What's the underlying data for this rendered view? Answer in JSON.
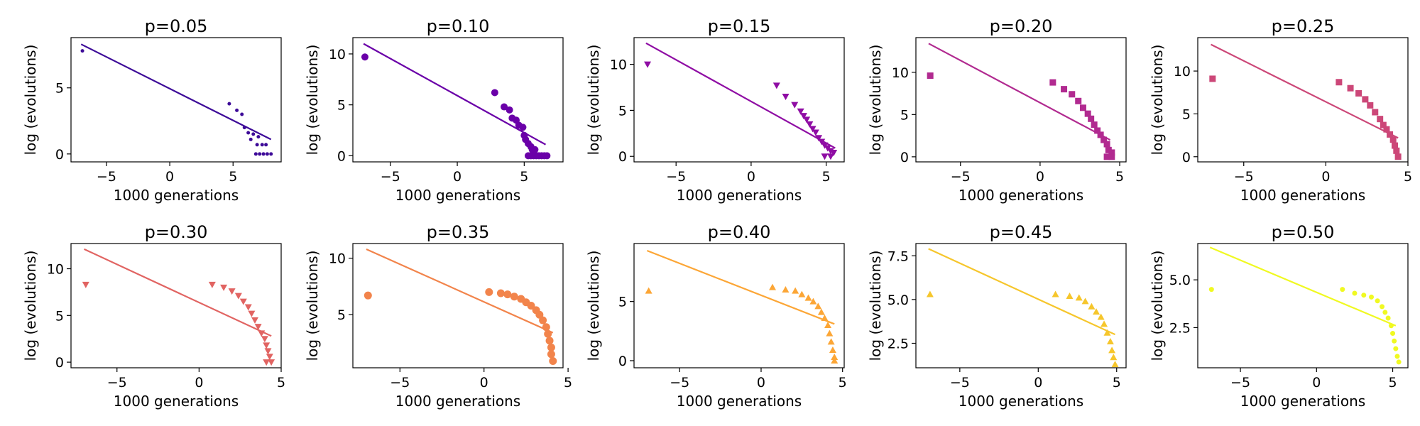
{
  "chart_data": [
    {
      "type": "scatter",
      "title": "p=0.05",
      "xlabel": "1000 generations",
      "ylabel": "log (evolutions)",
      "xlim": [
        -7.8,
        8.8
      ],
      "ylim": [
        -0.6,
        8.8
      ],
      "xticks": [
        -5,
        0,
        5
      ],
      "yticks": [
        0,
        5
      ],
      "ytick_labels": [
        "0",
        "5"
      ],
      "marker": "circle",
      "marker_size": 2.5,
      "color": "#3d0a98",
      "fit": {
        "x": [
          -7,
          8
        ],
        "y": [
          8.3,
          1.1
        ]
      },
      "points": [
        [
          -6.9,
          7.8
        ],
        [
          4.7,
          3.8
        ],
        [
          5.3,
          3.3
        ],
        [
          5.7,
          3.0
        ],
        [
          5.9,
          2.0
        ],
        [
          6.2,
          1.6
        ],
        [
          6.6,
          1.5
        ],
        [
          6.4,
          1.1
        ],
        [
          7.0,
          1.3
        ],
        [
          6.9,
          0.7
        ],
        [
          7.3,
          0.7
        ],
        [
          7.6,
          0.7
        ],
        [
          6.8,
          0.0
        ],
        [
          7.1,
          0.0
        ],
        [
          7.4,
          0.0
        ],
        [
          7.7,
          0.0
        ],
        [
          8.0,
          0.0
        ]
      ]
    },
    {
      "type": "scatter",
      "title": "p=0.10",
      "xlabel": "1000 generations",
      "ylabel": "log (evolutions)",
      "xlim": [
        -7.8,
        7.9
      ],
      "ylim": [
        -0.6,
        11.6
      ],
      "xticks": [
        -5,
        0,
        5
      ],
      "yticks": [
        0,
        5,
        10
      ],
      "ytick_labels": [
        "0",
        "5",
        "10"
      ],
      "marker": "circle",
      "marker_size": 5,
      "color": "#6a00a8",
      "fit": {
        "x": [
          -7,
          6.6
        ],
        "y": [
          11.0,
          1.1
        ]
      },
      "points": [
        [
          -6.9,
          9.7
        ],
        [
          2.8,
          6.2
        ],
        [
          3.5,
          4.8
        ],
        [
          3.9,
          4.5
        ],
        [
          4.1,
          3.7
        ],
        [
          4.4,
          3.5
        ],
        [
          4.6,
          3.0
        ],
        [
          4.9,
          2.8
        ],
        [
          5.0,
          2.0
        ],
        [
          5.1,
          1.6
        ],
        [
          5.3,
          1.2
        ],
        [
          5.5,
          0.9
        ],
        [
          5.6,
          0.6
        ],
        [
          5.8,
          0.6
        ],
        [
          5.3,
          0.0
        ],
        [
          5.5,
          0.0
        ],
        [
          5.7,
          0.0
        ],
        [
          5.9,
          0.0
        ],
        [
          6.1,
          0.0
        ],
        [
          6.3,
          0.0
        ],
        [
          6.5,
          0.0
        ],
        [
          6.7,
          0.0
        ]
      ]
    },
    {
      "type": "scatter",
      "title": "p=0.15",
      "xlabel": "1000 generations",
      "ylabel": "log (evolutions)",
      "xlim": [
        -7.8,
        6.2
      ],
      "ylim": [
        -0.6,
        12.9
      ],
      "xticks": [
        -5,
        0,
        5
      ],
      "yticks": [
        0,
        5,
        10
      ],
      "ytick_labels": [
        "0",
        "5",
        "10"
      ],
      "marker": "triangle-down",
      "marker_size": 5,
      "color": "#8f0da4",
      "fit": {
        "x": [
          -7,
          5.6
        ],
        "y": [
          12.3,
          0.9
        ]
      },
      "points": [
        [
          -6.9,
          10.0
        ],
        [
          1.7,
          7.7
        ],
        [
          2.3,
          6.5
        ],
        [
          2.9,
          5.6
        ],
        [
          3.3,
          4.9
        ],
        [
          3.5,
          4.4
        ],
        [
          3.7,
          4.0
        ],
        [
          3.9,
          3.5
        ],
        [
          4.1,
          3.0
        ],
        [
          4.3,
          2.6
        ],
        [
          4.5,
          2.0
        ],
        [
          4.7,
          1.6
        ],
        [
          4.9,
          1.2
        ],
        [
          5.1,
          0.9
        ],
        [
          5.3,
          0.6
        ],
        [
          5.5,
          0.4
        ],
        [
          4.9,
          0.0
        ],
        [
          5.3,
          0.0
        ]
      ]
    },
    {
      "type": "scatter",
      "title": "p=0.20",
      "xlabel": "1000 generations",
      "ylabel": "log (evolutions)",
      "xlim": [
        -7.8,
        5.4
      ],
      "ylim": [
        -0.6,
        14.1
      ],
      "xticks": [
        -5,
        0,
        5
      ],
      "yticks": [
        0,
        5,
        10
      ],
      "ytick_labels": [
        "0",
        "5",
        "10"
      ],
      "marker": "square",
      "marker_size": 4.5,
      "color": "#b12a90",
      "fit": {
        "x": [
          -7,
          4.4
        ],
        "y": [
          13.4,
          2.0
        ]
      },
      "points": [
        [
          -6.9,
          9.6
        ],
        [
          0.8,
          8.8
        ],
        [
          1.5,
          8.0
        ],
        [
          2.0,
          7.4
        ],
        [
          2.4,
          6.6
        ],
        [
          2.7,
          5.8
        ],
        [
          3.0,
          5.1
        ],
        [
          3.2,
          4.5
        ],
        [
          3.4,
          3.8
        ],
        [
          3.6,
          3.1
        ],
        [
          3.8,
          2.6
        ],
        [
          4.0,
          2.0
        ],
        [
          4.2,
          1.5
        ],
        [
          4.3,
          0.8
        ],
        [
          4.5,
          0.5
        ],
        [
          4.2,
          0.0
        ],
        [
          4.5,
          0.0
        ]
      ]
    },
    {
      "type": "scatter",
      "title": "p=0.25",
      "xlabel": "1000 generations",
      "ylabel": "log (evolutions)",
      "xlim": [
        -7.8,
        5.0
      ],
      "ylim": [
        -0.6,
        13.9
      ],
      "xticks": [
        -5,
        0,
        5
      ],
      "yticks": [
        0,
        5,
        10
      ],
      "ytick_labels": [
        "0",
        "5",
        "10"
      ],
      "marker": "square",
      "marker_size": 4.5,
      "color": "#cc4778",
      "fit": {
        "x": [
          -7,
          4.4
        ],
        "y": [
          13.1,
          2.2
        ]
      },
      "points": [
        [
          -6.9,
          9.1
        ],
        [
          0.8,
          8.7
        ],
        [
          1.5,
          8.0
        ],
        [
          2.0,
          7.4
        ],
        [
          2.4,
          6.7
        ],
        [
          2.7,
          6.0
        ],
        [
          3.0,
          5.2
        ],
        [
          3.3,
          4.4
        ],
        [
          3.5,
          3.7
        ],
        [
          3.7,
          3.2
        ],
        [
          3.9,
          2.6
        ],
        [
          4.1,
          2.0
        ],
        [
          4.2,
          1.3
        ],
        [
          4.3,
          0.7
        ],
        [
          4.4,
          0.0
        ]
      ]
    },
    {
      "type": "scatter",
      "title": "p=0.30",
      "xlabel": "1000 generations",
      "ylabel": "log (evolutions)",
      "xlim": [
        -7.8,
        5.0
      ],
      "ylim": [
        -0.6,
        12.7
      ],
      "xticks": [
        -5,
        0,
        5
      ],
      "yticks": [
        0,
        5,
        10
      ],
      "ytick_labels": [
        "0",
        "5",
        "10"
      ],
      "marker": "triangle-down",
      "marker_size": 5,
      "color": "#e16462",
      "fit": {
        "x": [
          -7,
          4.4
        ],
        "y": [
          12.1,
          2.8
        ]
      },
      "points": [
        [
          -6.9,
          8.3
        ],
        [
          0.8,
          8.3
        ],
        [
          1.5,
          8.0
        ],
        [
          2.0,
          7.6
        ],
        [
          2.4,
          7.1
        ],
        [
          2.7,
          6.5
        ],
        [
          3.0,
          5.9
        ],
        [
          3.2,
          5.2
        ],
        [
          3.4,
          4.5
        ],
        [
          3.6,
          3.8
        ],
        [
          3.8,
          3.1
        ],
        [
          4.0,
          2.5
        ],
        [
          4.1,
          1.8
        ],
        [
          4.2,
          1.2
        ],
        [
          4.3,
          0.6
        ],
        [
          4.1,
          0.0
        ],
        [
          4.4,
          0.0
        ]
      ]
    },
    {
      "type": "scatter",
      "title": "p=0.35",
      "xlabel": "1000 generations",
      "ylabel": "log (evolutions)",
      "xlim": [
        -7.8,
        4.7
      ],
      "ylim": [
        0.3,
        11.3
      ],
      "xticks": [
        -5,
        0,
        5
      ],
      "yticks": [
        5,
        10
      ],
      "ytick_labels": [
        "5",
        "10"
      ],
      "marker": "circle",
      "marker_size": 5.5,
      "color": "#f2844b",
      "fit": {
        "x": [
          -7,
          4.1
        ],
        "y": [
          10.8,
          3.4
        ]
      },
      "points": [
        [
          -6.9,
          6.7
        ],
        [
          0.3,
          7.0
        ],
        [
          1.0,
          6.9
        ],
        [
          1.4,
          6.8
        ],
        [
          1.8,
          6.6
        ],
        [
          2.2,
          6.4
        ],
        [
          2.5,
          6.1
        ],
        [
          2.8,
          5.8
        ],
        [
          3.1,
          5.4
        ],
        [
          3.3,
          5.0
        ],
        [
          3.5,
          4.5
        ],
        [
          3.7,
          3.9
        ],
        [
          3.8,
          3.3
        ],
        [
          3.9,
          2.7
        ],
        [
          4.0,
          2.1
        ],
        [
          4.0,
          1.5
        ],
        [
          4.1,
          0.9
        ]
      ]
    },
    {
      "type": "scatter",
      "title": "p=0.40",
      "xlabel": "1000 generations",
      "ylabel": "log (evolutions)",
      "xlim": [
        -7.8,
        5.1
      ],
      "ylim": [
        -0.6,
        9.9
      ],
      "xticks": [
        -5,
        0,
        5
      ],
      "yticks": [
        0,
        5
      ],
      "ytick_labels": [
        "0",
        "5"
      ],
      "marker": "triangle-up",
      "marker_size": 5,
      "color": "#fca636",
      "fit": {
        "x": [
          -7,
          4.5
        ],
        "y": [
          9.3,
          3.1
        ]
      },
      "points": [
        [
          -6.9,
          5.9
        ],
        [
          0.7,
          6.2
        ],
        [
          1.5,
          6.0
        ],
        [
          2.1,
          5.9
        ],
        [
          2.5,
          5.6
        ],
        [
          2.9,
          5.3
        ],
        [
          3.2,
          5.0
        ],
        [
          3.5,
          4.6
        ],
        [
          3.7,
          4.1
        ],
        [
          3.9,
          3.6
        ],
        [
          4.1,
          3.0
        ],
        [
          4.2,
          2.3
        ],
        [
          4.3,
          1.6
        ],
        [
          4.4,
          0.9
        ],
        [
          4.5,
          0.3
        ],
        [
          4.5,
          0.0
        ]
      ]
    },
    {
      "type": "scatter",
      "title": "p=0.45",
      "xlabel": "1000 generations",
      "ylabel": "log (evolutions)",
      "xlim": [
        -7.8,
        5.6
      ],
      "ylim": [
        1.1,
        8.2
      ],
      "xticks": [
        -5,
        0,
        5
      ],
      "yticks": [
        2.5,
        5.0,
        7.5
      ],
      "ytick_labels": [
        "2.5",
        "5.0",
        "7.5"
      ],
      "marker": "triangle-up",
      "marker_size": 5,
      "color": "#f6c62c",
      "fit": {
        "x": [
          -7,
          4.9
        ],
        "y": [
          7.9,
          3.0
        ]
      },
      "points": [
        [
          -6.9,
          5.3
        ],
        [
          1.1,
          5.3
        ],
        [
          2.0,
          5.2
        ],
        [
          2.6,
          5.1
        ],
        [
          3.0,
          4.9
        ],
        [
          3.4,
          4.6
        ],
        [
          3.7,
          4.3
        ],
        [
          4.0,
          4.0
        ],
        [
          4.2,
          3.6
        ],
        [
          4.4,
          3.1
        ],
        [
          4.6,
          2.6
        ],
        [
          4.7,
          2.1
        ],
        [
          4.8,
          1.7
        ],
        [
          4.9,
          1.3
        ]
      ]
    },
    {
      "type": "scatter",
      "title": "p=0.50",
      "xlabel": "1000 generations",
      "ylabel": "log (evolutions)",
      "xlim": [
        -7.8,
        6.0
      ],
      "ylim": [
        0.4,
        6.9
      ],
      "xticks": [
        -5,
        0,
        5
      ],
      "yticks": [
        2.5,
        5.0
      ],
      "ytick_labels": [
        "2.5",
        "5.0"
      ],
      "marker": "circle",
      "marker_size": 3.5,
      "color": "#f0f921",
      "fit": {
        "x": [
          -7,
          5.2
        ],
        "y": [
          6.7,
          2.6
        ]
      },
      "points": [
        [
          -6.9,
          4.5
        ],
        [
          1.7,
          4.5
        ],
        [
          2.5,
          4.3
        ],
        [
          3.1,
          4.2
        ],
        [
          3.6,
          4.1
        ],
        [
          4.0,
          3.9
        ],
        [
          4.3,
          3.6
        ],
        [
          4.5,
          3.3
        ],
        [
          4.7,
          3.0
        ],
        [
          4.9,
          2.6
        ],
        [
          5.0,
          2.2
        ],
        [
          5.1,
          1.8
        ],
        [
          5.2,
          1.4
        ],
        [
          5.3,
          1.0
        ],
        [
          5.4,
          0.7
        ]
      ]
    }
  ]
}
